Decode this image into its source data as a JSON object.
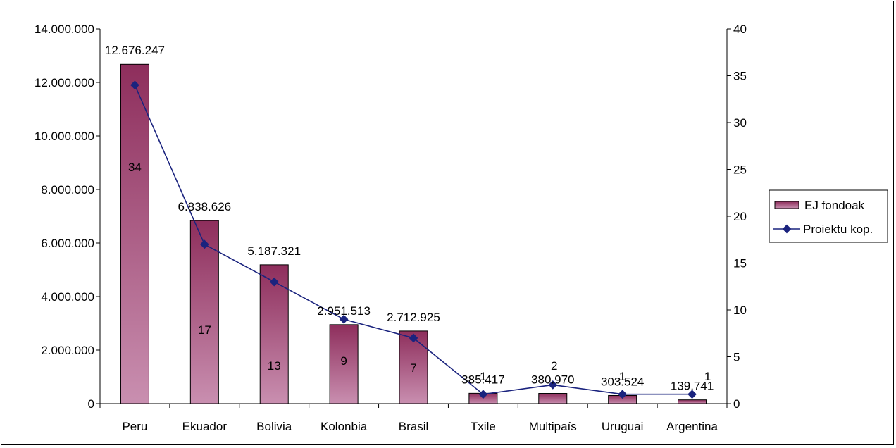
{
  "chart_data": {
    "type": "bar",
    "categories": [
      "Peru",
      "Ekuador",
      "Bolivia",
      "Kolonbia",
      "Brasil",
      "Txile",
      "Multipaís",
      "Uruguai",
      "Argentina"
    ],
    "series": [
      {
        "name": "EJ fondoak",
        "type": "bar",
        "axis": "left",
        "values": [
          12676247,
          6838626,
          5187321,
          2951513,
          2712925,
          385417,
          380970,
          303524,
          139741
        ],
        "labels": [
          "12.676.247",
          "6.838.626",
          "5.187.321",
          "2.951.513",
          "2.712.925",
          "385.417",
          "380.970",
          "303.524",
          "139.741"
        ]
      },
      {
        "name": "Proiektu kop.",
        "type": "line",
        "axis": "right",
        "values": [
          34,
          17,
          13,
          9,
          7,
          1,
          2,
          1,
          1
        ],
        "labels": [
          "34",
          "17",
          "13",
          "9",
          "7",
          "1",
          "2",
          "1",
          "1"
        ]
      }
    ],
    "y_left": {
      "ylim": [
        0,
        14000000
      ],
      "ticks": [
        0,
        2000000,
        4000000,
        6000000,
        8000000,
        10000000,
        12000000,
        14000000
      ],
      "tick_labels": [
        "0",
        "2.000.000",
        "4.000.000",
        "6.000.000",
        "8.000.000",
        "10.000.000",
        "12.000.000",
        "14.000.000"
      ]
    },
    "y_right": {
      "ylim": [
        0,
        40
      ],
      "ticks": [
        0,
        5,
        10,
        15,
        20,
        25,
        30,
        35,
        40
      ],
      "tick_labels": [
        "0",
        "5",
        "10",
        "15",
        "20",
        "25",
        "30",
        "35",
        "40"
      ]
    },
    "legend_position": "right",
    "grid": false,
    "colors": {
      "bar_top": "#8e2e5c",
      "bar_bottom": "#c98fb0",
      "line": "#1a237e",
      "marker": "#1a237e"
    }
  }
}
